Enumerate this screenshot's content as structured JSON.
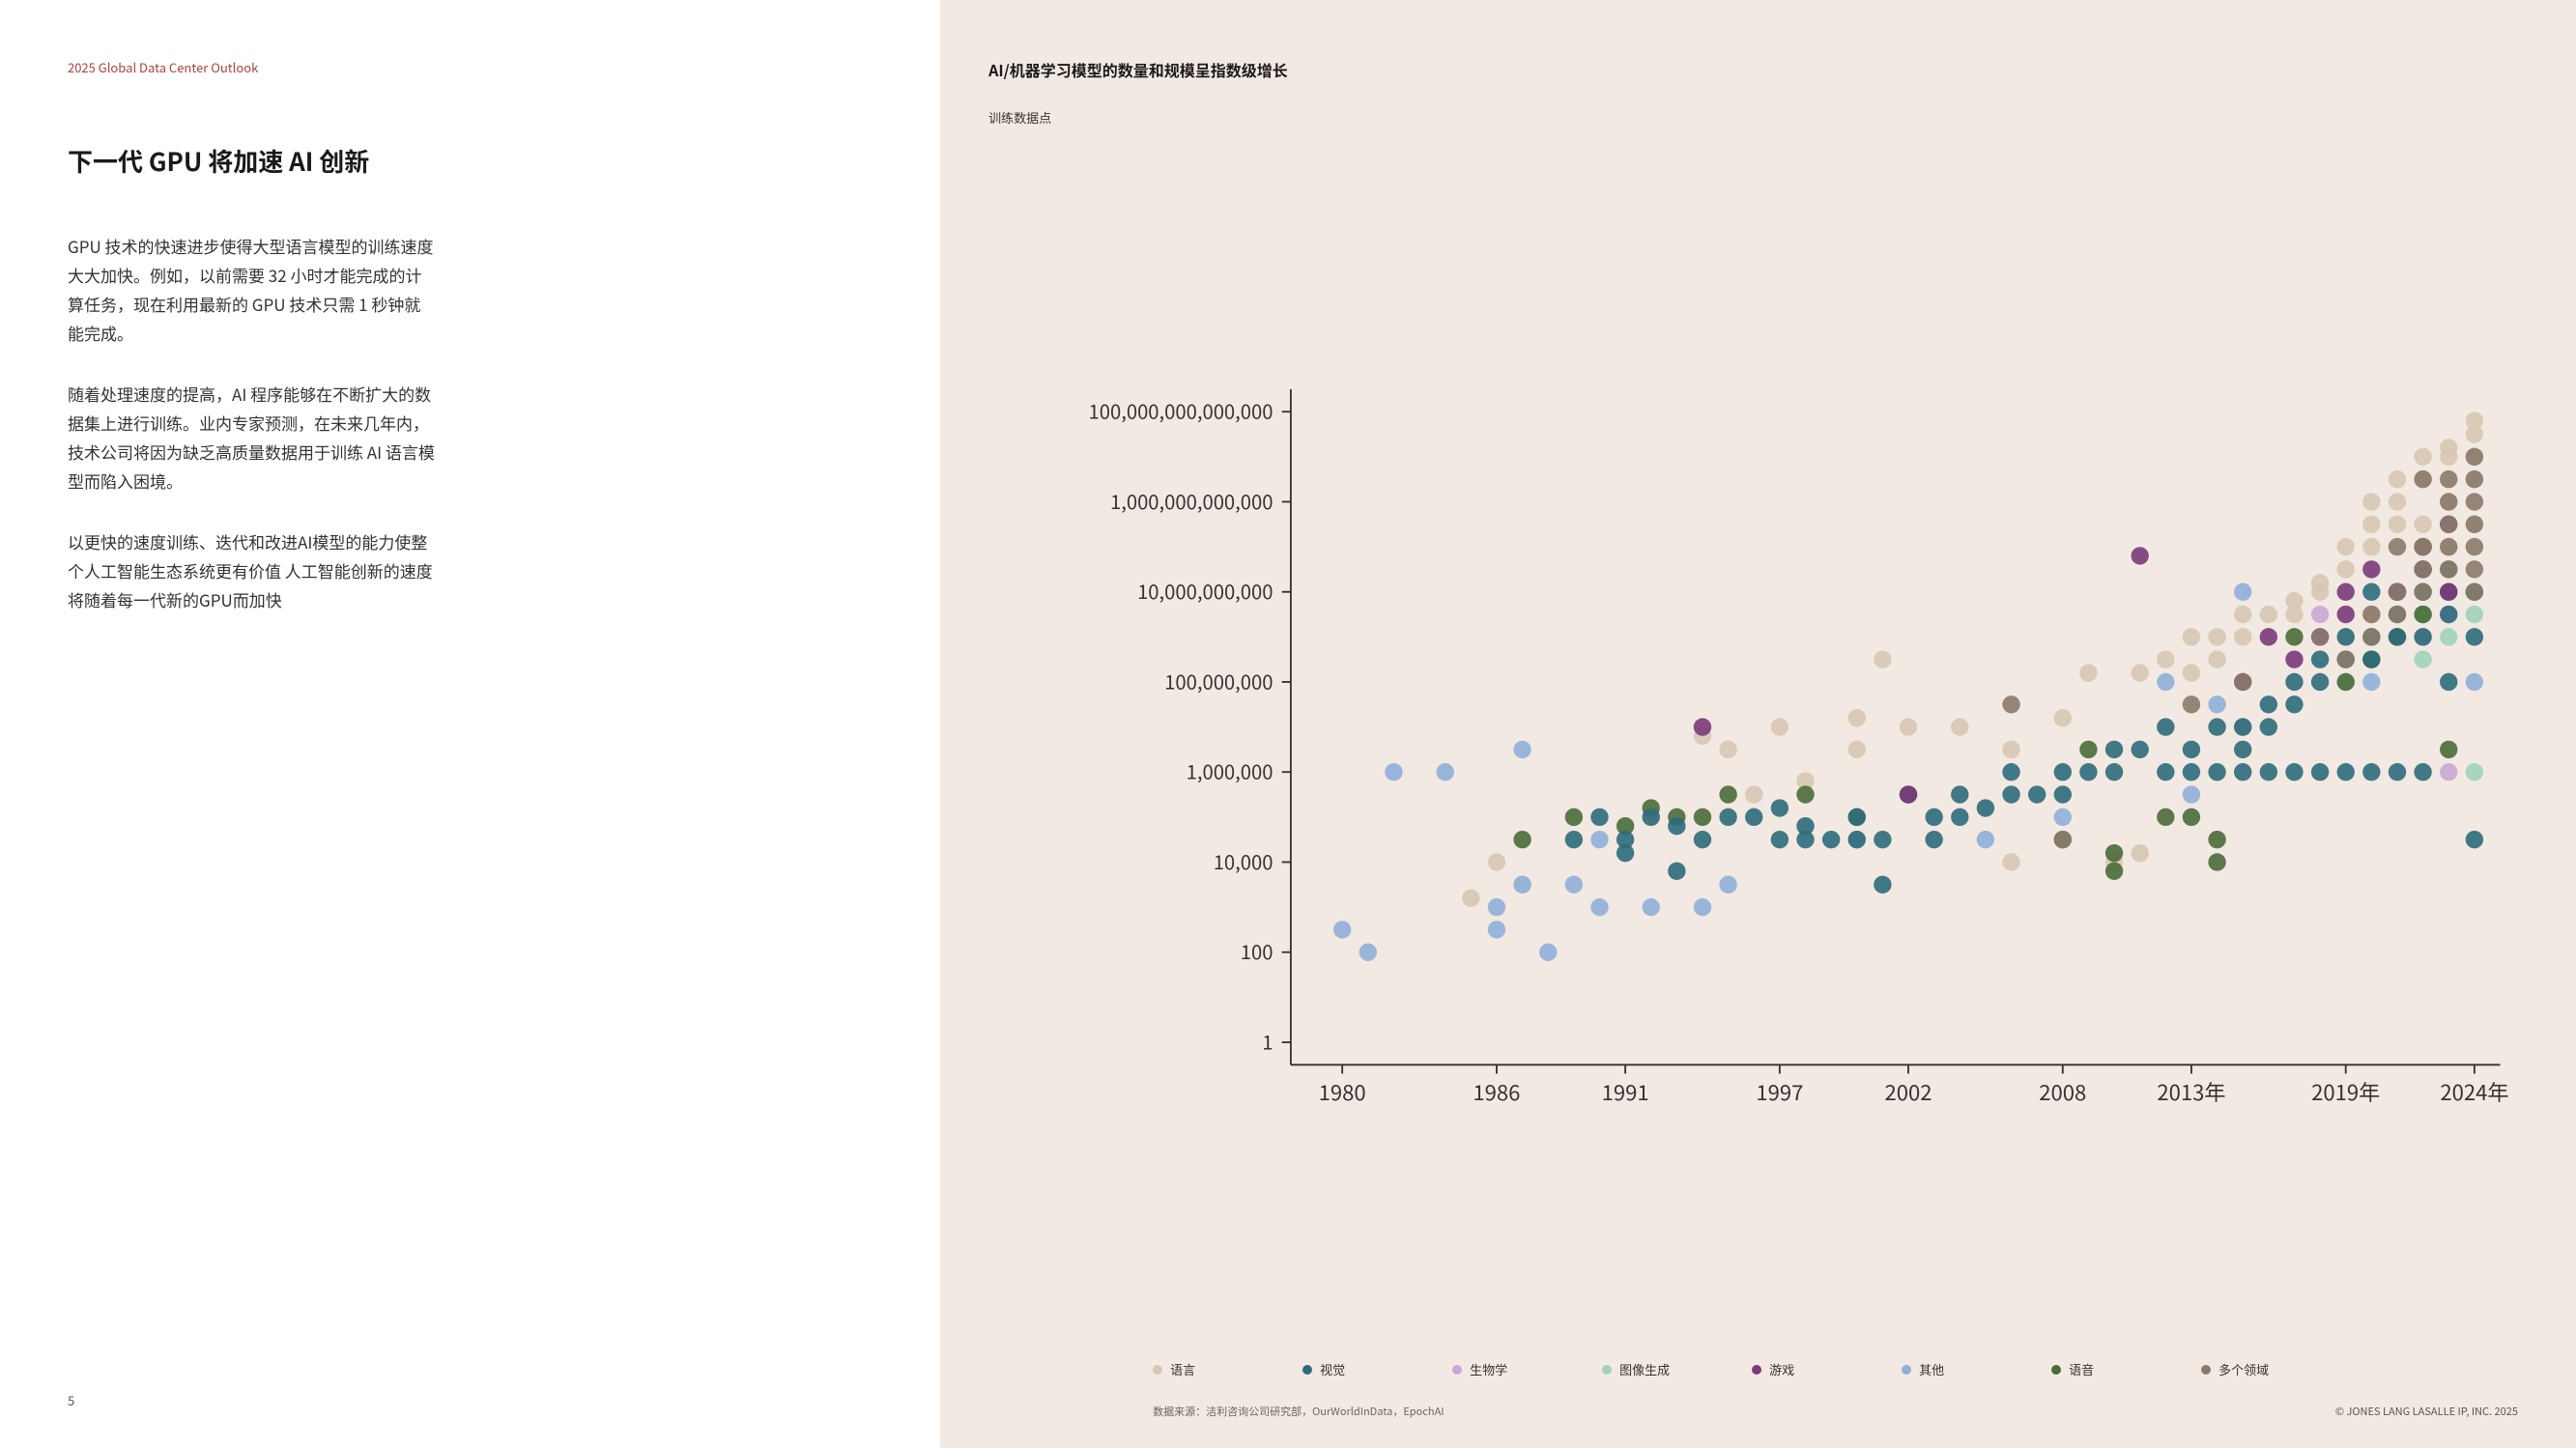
{
  "header": {
    "doc_title": "2025 Global Data Center Outlook"
  },
  "left": {
    "title": "下一代 GPU 将加速 AI 创新",
    "para1": "GPU 技术的快速进步使得大型语言模型的训练速度大大加快。例如，以前需要 32 小时才能完成的计算任务，现在利用最新的 GPU 技术只需 1 秒钟就能完成。",
    "para2": "随着处理速度的提高，AI 程序能够在不断扩大的数据集上进行训练。业内专家预测，在未来几年内，技术公司将因为缺乏高质量数据用于训练 AI 语言模型而陷入困境。",
    "para3": "以更快的速度训练、迭代和改进AI模型的能力使整个人工智能生态系统更有价值 人工智能创新的速度将随着每一代新的GPU而加快",
    "page_number": "5"
  },
  "chart": {
    "title": "AI/机器学习模型的数量和规模呈指数级增长",
    "subtitle": "训练数据点",
    "type": "scatter",
    "background_color": "#f3e9e3",
    "axis_color": "#333333",
    "x_axis": {
      "label": "",
      "ticks": [
        "1980",
        "1986",
        "1991",
        "1997",
        "2002",
        "2008",
        "2013年",
        "2019年",
        "2024年"
      ],
      "tick_values": [
        1980,
        1986,
        1991,
        1997,
        2002,
        2008,
        2013,
        2019,
        2024
      ],
      "min": 1978,
      "max": 2025
    },
    "y_axis": {
      "scale": "log",
      "ticks": [
        "1",
        "100",
        "10,000",
        "1,000,000",
        "100,000,000",
        "10,000,000,000",
        "1,000,000,000,000",
        "100,000,000,000,000"
      ],
      "tick_values": [
        0,
        2,
        4,
        6,
        8,
        10,
        12,
        14
      ],
      "min": -0.5,
      "max": 14.5
    },
    "marker_radius": 5,
    "marker_opacity": 0.9,
    "series": [
      {
        "key": "language",
        "label": "语言",
        "color": "#d6c8b1"
      },
      {
        "key": "vision",
        "label": "视觉",
        "color": "#2d6b7a"
      },
      {
        "key": "biology",
        "label": "生物学",
        "color": "#c9a9d4"
      },
      {
        "key": "imagegen",
        "label": "图像生成",
        "color": "#9fd4b8"
      },
      {
        "key": "games",
        "label": "游戏",
        "color": "#7a3a7a"
      },
      {
        "key": "other",
        "label": "其他",
        "color": "#8fb0d8"
      },
      {
        "key": "speech",
        "label": "语音",
        "color": "#4a6b3a"
      },
      {
        "key": "multi",
        "label": "多个领域",
        "color": "#8a7a6a"
      }
    ],
    "points": {
      "language": [
        [
          1985,
          3.2
        ],
        [
          1986,
          4.0
        ],
        [
          1987,
          3.5
        ],
        [
          1992,
          5.0
        ],
        [
          1994,
          6.8
        ],
        [
          1995,
          6.5
        ],
        [
          1996,
          5.5
        ],
        [
          1997,
          7.0
        ],
        [
          1998,
          5.8
        ],
        [
          2000,
          6.5
        ],
        [
          2000,
          7.2
        ],
        [
          2001,
          8.5
        ],
        [
          2002,
          7.0
        ],
        [
          2004,
          7.0
        ],
        [
          2006,
          6.5
        ],
        [
          2006,
          4.0
        ],
        [
          2008,
          7.2
        ],
        [
          2009,
          8.2
        ],
        [
          2010,
          4.0
        ],
        [
          2011,
          4.2
        ],
        [
          2011,
          8.2
        ],
        [
          2012,
          8.5
        ],
        [
          2013,
          8.2
        ],
        [
          2013,
          9.0
        ],
        [
          2014,
          8.5
        ],
        [
          2014,
          9.0
        ],
        [
          2015,
          9.0
        ],
        [
          2015,
          9.5
        ],
        [
          2016,
          9.5
        ],
        [
          2017,
          9.5
        ],
        [
          2017,
          9.8
        ],
        [
          2018,
          10.0
        ],
        [
          2018,
          10.2
        ],
        [
          2019,
          10.5
        ],
        [
          2019,
          11.0
        ],
        [
          2019,
          9.0
        ],
        [
          2020,
          11.0
        ],
        [
          2020,
          11.5
        ],
        [
          2020,
          12.0
        ],
        [
          2020,
          9.5
        ],
        [
          2021,
          11.5
        ],
        [
          2021,
          12.0
        ],
        [
          2021,
          12.5
        ],
        [
          2021,
          10.0
        ],
        [
          2022,
          12.5
        ],
        [
          2022,
          13.0
        ],
        [
          2022,
          11.5
        ],
        [
          2022,
          10.5
        ],
        [
          2023,
          13.0
        ],
        [
          2023,
          13.2
        ],
        [
          2023,
          12.0
        ],
        [
          2023,
          11.0
        ],
        [
          2024,
          13.5
        ],
        [
          2024,
          13.0
        ],
        [
          2024,
          12.5
        ],
        [
          2024,
          11.5
        ],
        [
          2024,
          13.8
        ]
      ],
      "vision": [
        [
          1989,
          4.5
        ],
        [
          1990,
          5.0
        ],
        [
          1991,
          4.2
        ],
        [
          1991,
          4.5
        ],
        [
          1992,
          5.0
        ],
        [
          1993,
          3.8
        ],
        [
          1993,
          4.8
        ],
        [
          1994,
          4.5
        ],
        [
          1995,
          5.0
        ],
        [
          1996,
          5.0
        ],
        [
          1997,
          4.5
        ],
        [
          1997,
          5.2
        ],
        [
          1998,
          4.8
        ],
        [
          1998,
          4.5
        ],
        [
          1999,
          4.5
        ],
        [
          2000,
          5.0
        ],
        [
          2000,
          4.5
        ],
        [
          2001,
          4.5
        ],
        [
          2001,
          3.5
        ],
        [
          2002,
          5.5
        ],
        [
          2003,
          5.0
        ],
        [
          2003,
          4.5
        ],
        [
          2004,
          5.5
        ],
        [
          2004,
          5.0
        ],
        [
          2005,
          5.2
        ],
        [
          2006,
          5.5
        ],
        [
          2006,
          6.0
        ],
        [
          2007,
          5.5
        ],
        [
          2008,
          5.5
        ],
        [
          2008,
          6.0
        ],
        [
          2009,
          6.0
        ],
        [
          2010,
          6.0
        ],
        [
          2010,
          6.5
        ],
        [
          2011,
          6.5
        ],
        [
          2012,
          6.0
        ],
        [
          2012,
          7.0
        ],
        [
          2013,
          6.0
        ],
        [
          2013,
          6.5
        ],
        [
          2014,
          6.0
        ],
        [
          2014,
          7.0
        ],
        [
          2015,
          6.0
        ],
        [
          2015,
          7.0
        ],
        [
          2015,
          6.5
        ],
        [
          2016,
          6.0
        ],
        [
          2016,
          7.5
        ],
        [
          2016,
          7.0
        ],
        [
          2017,
          6.0
        ],
        [
          2017,
          8.0
        ],
        [
          2017,
          7.5
        ],
        [
          2018,
          6.0
        ],
        [
          2018,
          8.0
        ],
        [
          2018,
          8.5
        ],
        [
          2019,
          6.0
        ],
        [
          2019,
          8.5
        ],
        [
          2019,
          9.0
        ],
        [
          2020,
          6.0
        ],
        [
          2020,
          9.0
        ],
        [
          2020,
          8.5
        ],
        [
          2020,
          10.0
        ],
        [
          2021,
          6.0
        ],
        [
          2021,
          9.0
        ],
        [
          2021,
          9.5
        ],
        [
          2021,
          10.0
        ],
        [
          2022,
          6.0
        ],
        [
          2022,
          9.0
        ],
        [
          2022,
          10.0
        ],
        [
          2022,
          10.5
        ],
        [
          2023,
          9.5
        ],
        [
          2023,
          10.0
        ],
        [
          2023,
          10.5
        ],
        [
          2023,
          8.0
        ],
        [
          2024,
          9.0
        ],
        [
          2024,
          10.0
        ],
        [
          2024,
          4.5
        ]
      ],
      "biology": [
        [
          2015,
          7.0
        ],
        [
          2018,
          9.5
        ],
        [
          2020,
          8.5
        ],
        [
          2021,
          9.0
        ],
        [
          2021,
          10.0
        ],
        [
          2022,
          9.0
        ],
        [
          2022,
          11.0
        ],
        [
          2023,
          9.5
        ],
        [
          2023,
          6.0
        ],
        [
          2024,
          10.0
        ]
      ],
      "imagegen": [
        [
          2019,
          8.0
        ],
        [
          2020,
          8.5
        ],
        [
          2021,
          9.0
        ],
        [
          2022,
          8.5
        ],
        [
          2022,
          9.5
        ],
        [
          2023,
          9.0
        ],
        [
          2023,
          10.0
        ],
        [
          2024,
          9.5
        ],
        [
          2024,
          6.0
        ]
      ],
      "games": [
        [
          1994,
          7.0
        ],
        [
          2002,
          5.5
        ],
        [
          2011,
          10.8
        ],
        [
          2015,
          8.0
        ],
        [
          2016,
          9.0
        ],
        [
          2017,
          8.5
        ],
        [
          2018,
          9.0
        ],
        [
          2019,
          10.0
        ],
        [
          2019,
          9.5
        ],
        [
          2020,
          10.5
        ],
        [
          2021,
          10.0
        ],
        [
          2022,
          11.0
        ],
        [
          2022,
          10.5
        ],
        [
          2023,
          11.5
        ],
        [
          2023,
          10.0
        ]
      ],
      "other": [
        [
          1980,
          2.5
        ],
        [
          1981,
          2.0
        ],
        [
          1982,
          6.0
        ],
        [
          1984,
          6.0
        ],
        [
          1986,
          2.5
        ],
        [
          1986,
          3.0
        ],
        [
          1987,
          3.5
        ],
        [
          1987,
          6.5
        ],
        [
          1988,
          2.0
        ],
        [
          1989,
          3.5
        ],
        [
          1990,
          3.0
        ],
        [
          1990,
          4.5
        ],
        [
          1992,
          3.0
        ],
        [
          1994,
          3.0
        ],
        [
          1995,
          3.5
        ],
        [
          2000,
          4.5
        ],
        [
          2005,
          4.5
        ],
        [
          2008,
          5.0
        ],
        [
          2012,
          8.0
        ],
        [
          2013,
          5.5
        ],
        [
          2014,
          7.5
        ],
        [
          2015,
          10.0
        ],
        [
          2020,
          8.0
        ],
        [
          2021,
          9.0
        ],
        [
          2022,
          9.5
        ],
        [
          2024,
          8.0
        ]
      ],
      "speech": [
        [
          1987,
          4.5
        ],
        [
          1989,
          5.0
        ],
        [
          1991,
          4.8
        ],
        [
          1992,
          5.2
        ],
        [
          1993,
          5.0
        ],
        [
          1994,
          5.0
        ],
        [
          1995,
          5.5
        ],
        [
          1998,
          5.5
        ],
        [
          2000,
          5.0
        ],
        [
          2002,
          5.5
        ],
        [
          2008,
          4.5
        ],
        [
          2009,
          6.5
        ],
        [
          2010,
          3.8
        ],
        [
          2010,
          4.2
        ],
        [
          2012,
          5.0
        ],
        [
          2013,
          5.0
        ],
        [
          2014,
          4.5
        ],
        [
          2014,
          4.0
        ],
        [
          2017,
          9.0
        ],
        [
          2019,
          8.0
        ],
        [
          2020,
          8.5
        ],
        [
          2021,
          9.0
        ],
        [
          2022,
          9.5
        ],
        [
          2023,
          6.5
        ]
      ],
      "multi": [
        [
          2006,
          7.5
        ],
        [
          2008,
          4.5
        ],
        [
          2013,
          7.5
        ],
        [
          2015,
          8.0
        ],
        [
          2018,
          9.0
        ],
        [
          2019,
          8.5
        ],
        [
          2020,
          9.5
        ],
        [
          2020,
          9.0
        ],
        [
          2021,
          10.0
        ],
        [
          2021,
          9.5
        ],
        [
          2021,
          11.0
        ],
        [
          2022,
          10.0
        ],
        [
          2022,
          10.5
        ],
        [
          2022,
          11.0
        ],
        [
          2022,
          12.5
        ],
        [
          2022,
          11.0
        ],
        [
          2023,
          11.0
        ],
        [
          2023,
          11.5
        ],
        [
          2023,
          12.0
        ],
        [
          2023,
          10.5
        ],
        [
          2023,
          12.5
        ],
        [
          2024,
          11.0
        ],
        [
          2024,
          11.5
        ],
        [
          2024,
          12.0
        ],
        [
          2024,
          12.5
        ],
        [
          2024,
          13.0
        ],
        [
          2024,
          10.5
        ],
        [
          2024,
          10.0
        ]
      ]
    },
    "source": "数据来源：洁利咨询公司研究部，OurWorldInData，EpochAI"
  },
  "footer": {
    "copyright": "© JONES LANG LASALLE IP, INC. 2025"
  }
}
